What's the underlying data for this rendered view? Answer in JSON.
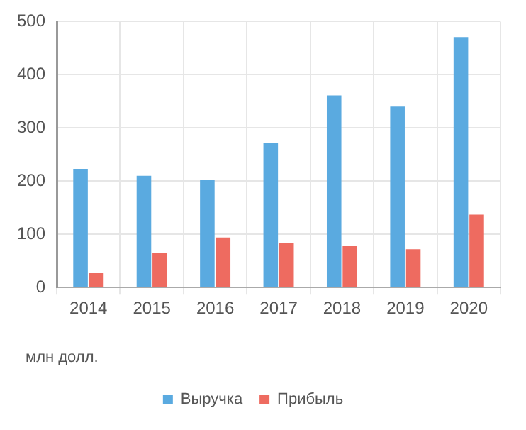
{
  "chart_data": {
    "type": "bar",
    "categories": [
      "2014",
      "2015",
      "2016",
      "2017",
      "2018",
      "2019",
      "2020"
    ],
    "series": [
      {
        "name": "Выручка",
        "color": "#5aaae0",
        "values": [
          223,
          210,
          203,
          271,
          361,
          340,
          471
        ]
      },
      {
        "name": "Прибыль",
        "color": "#ee6b60",
        "values": [
          27,
          65,
          94,
          84,
          79,
          72,
          137
        ]
      }
    ],
    "ylim": [
      0,
      500
    ],
    "yticks": [
      0,
      100,
      200,
      300,
      400,
      500
    ],
    "grid": true,
    "legend": "bottom",
    "annotations": [
      "млн долл."
    ]
  }
}
